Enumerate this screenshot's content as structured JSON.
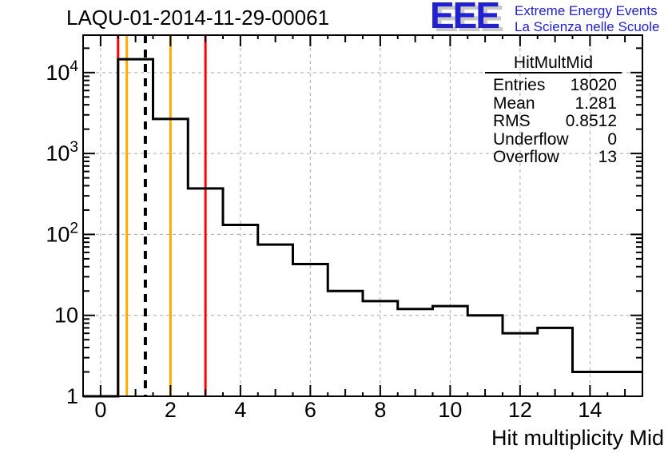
{
  "header": {
    "title": "LAQU-01-2014-11-29-00061"
  },
  "logo": {
    "acronym": "EEE",
    "line1": "Extreme Energy Events",
    "line2": "La Scienza nelle Scuole",
    "color": "#2121cd"
  },
  "stats": {
    "header": "HitMultMid",
    "rows": [
      {
        "label": "Entries",
        "value": "18020"
      },
      {
        "label": "Mean",
        "value": "1.281"
      },
      {
        "label": "RMS",
        "value": "0.8512"
      },
      {
        "label": "Underflow",
        "value": "0"
      },
      {
        "label": "Overflow",
        "value": "13"
      }
    ]
  },
  "chart_data": {
    "type": "bar",
    "subtype": "step-histogram",
    "title": "LAQU-01-2014-11-29-00061",
    "xlabel": "Hit multiplicity Mid",
    "ylabel": "",
    "x_bin_centers": [
      0,
      1,
      2,
      3,
      4,
      5,
      6,
      7,
      8,
      9,
      10,
      11,
      12,
      13,
      14,
      15
    ],
    "values": [
      0,
      14631,
      2670,
      370,
      131,
      75,
      43,
      20,
      15,
      12,
      13,
      10,
      6,
      7,
      2,
      2
    ],
    "bin_width": 1,
    "xlim": [
      -0.5,
      15.5
    ],
    "ylim": [
      1,
      29000
    ],
    "yscale": "log",
    "grid": true,
    "grid_color": "#aaaaaa",
    "line_color": "#000000",
    "x_major_ticks": [
      0,
      2,
      4,
      6,
      8,
      10,
      12,
      14
    ],
    "y_ticks": [
      {
        "v": 1,
        "base": "1",
        "exp": null
      },
      {
        "v": 10,
        "base": "10",
        "exp": null
      },
      {
        "v": 100,
        "base": "10",
        "exp": "2"
      },
      {
        "v": 1000,
        "base": "10",
        "exp": "3"
      },
      {
        "v": 10000,
        "base": "10",
        "exp": "4"
      }
    ],
    "reference_lines": [
      {
        "x": 0.5,
        "color": "#ff0000",
        "style": "solid",
        "name": "red-cut-low"
      },
      {
        "x": 0.75,
        "color": "#ffaa00",
        "style": "solid",
        "name": "orange-cut-low"
      },
      {
        "x": 1.281,
        "color": "#000000",
        "style": "dashed",
        "name": "mean-line"
      },
      {
        "x": 2,
        "color": "#ffaa00",
        "style": "solid",
        "name": "orange-cut-high"
      },
      {
        "x": 3,
        "color": "#ff0000",
        "style": "solid",
        "name": "red-cut-high"
      }
    ]
  }
}
